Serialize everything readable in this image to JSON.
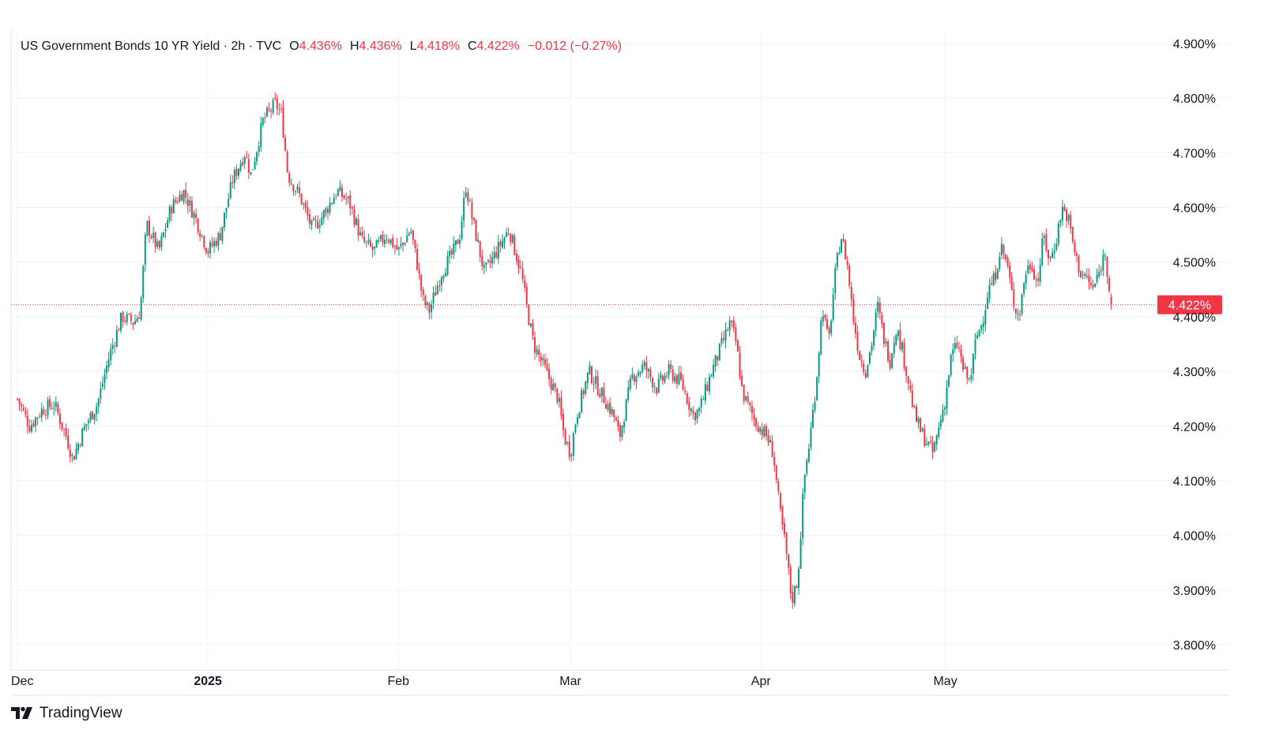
{
  "header": {
    "symbol": "US Government Bonds 10 YR Yield · 2h · TVC",
    "open_label": "O",
    "open": "4.436%",
    "high_label": "H",
    "high": "4.436%",
    "low_label": "L",
    "low": "4.418%",
    "close_label": "C",
    "close": "4.422%",
    "change": "−0.012 (−0.27%)"
  },
  "footer": {
    "brand": "TradingView",
    "logo_icon": "tradingview-logo-icon"
  },
  "colors": {
    "up": "#089981",
    "down": "#f23645",
    "grid": "#f0f3fa",
    "text": "#131722",
    "price_line": "#f23645"
  },
  "chart_data": {
    "type": "candlestick",
    "title": "US Government Bonds 10 YR Yield",
    "interval": "2h",
    "source": "TVC",
    "y_axis": {
      "position": "right",
      "unit": "%",
      "range": [
        3.76,
        4.92
      ],
      "ticks": [
        "4.900%",
        "4.800%",
        "4.700%",
        "4.600%",
        "4.500%",
        "4.400%",
        "4.300%",
        "4.200%",
        "4.100%",
        "4.000%",
        "3.900%",
        "3.800%"
      ]
    },
    "x_axis": {
      "ticks": [
        {
          "label": "Dec",
          "bold": false,
          "day": 0
        },
        {
          "label": "2025",
          "bold": true,
          "day": 31
        },
        {
          "label": "Feb",
          "bold": false,
          "day": 62
        },
        {
          "label": "Mar",
          "bold": false,
          "day": 90
        },
        {
          "label": "Apr",
          "bold": false,
          "day": 121
        },
        {
          "label": "May",
          "bold": false,
          "day": 151
        }
      ],
      "last_day": 178
    },
    "current_price": {
      "value": 4.422,
      "label": "4.422%"
    },
    "grid": true,
    "series": [
      {
        "name": "US Government Bonds 10 YR Yield",
        "kind": "close-path",
        "points": [
          [
            0,
            4.25
          ],
          [
            2,
            4.2
          ],
          [
            4,
            4.23
          ],
          [
            6,
            4.24
          ],
          [
            8,
            4.18
          ],
          [
            9,
            4.14
          ],
          [
            11,
            4.2
          ],
          [
            13,
            4.24
          ],
          [
            15,
            4.33
          ],
          [
            17,
            4.4
          ],
          [
            19,
            4.39
          ],
          [
            20,
            4.41
          ],
          [
            21,
            4.57
          ],
          [
            23,
            4.52
          ],
          [
            25,
            4.6
          ],
          [
            27,
            4.63
          ],
          [
            29,
            4.58
          ],
          [
            31,
            4.52
          ],
          [
            33,
            4.55
          ],
          [
            35,
            4.65
          ],
          [
            37,
            4.7
          ],
          [
            38,
            4.66
          ],
          [
            40,
            4.76
          ],
          [
            42,
            4.79
          ],
          [
            43,
            4.77
          ],
          [
            44,
            4.66
          ],
          [
            46,
            4.62
          ],
          [
            48,
            4.56
          ],
          [
            50,
            4.59
          ],
          [
            52,
            4.63
          ],
          [
            54,
            4.61
          ],
          [
            56,
            4.54
          ],
          [
            58,
            4.52
          ],
          [
            60,
            4.55
          ],
          [
            62,
            4.52
          ],
          [
            64,
            4.56
          ],
          [
            65,
            4.5
          ],
          [
            66,
            4.43
          ],
          [
            67,
            4.41
          ],
          [
            69,
            4.48
          ],
          [
            71,
            4.52
          ],
          [
            72,
            4.55
          ],
          [
            73,
            4.64
          ],
          [
            74,
            4.58
          ],
          [
            76,
            4.48
          ],
          [
            78,
            4.52
          ],
          [
            80,
            4.56
          ],
          [
            82,
            4.48
          ],
          [
            83,
            4.41
          ],
          [
            84,
            4.35
          ],
          [
            86,
            4.3
          ],
          [
            88,
            4.25
          ],
          [
            89,
            4.18
          ],
          [
            90,
            4.15
          ],
          [
            91,
            4.22
          ],
          [
            93,
            4.3
          ],
          [
            95,
            4.26
          ],
          [
            97,
            4.22
          ],
          [
            98,
            4.18
          ],
          [
            100,
            4.29
          ],
          [
            102,
            4.31
          ],
          [
            104,
            4.27
          ],
          [
            106,
            4.3
          ],
          [
            108,
            4.28
          ],
          [
            110,
            4.22
          ],
          [
            111,
            4.23
          ],
          [
            113,
            4.3
          ],
          [
            115,
            4.36
          ],
          [
            116,
            4.39
          ],
          [
            117,
            4.35
          ],
          [
            118,
            4.26
          ],
          [
            120,
            4.21
          ],
          [
            122,
            4.18
          ],
          [
            123,
            4.15
          ],
          [
            124,
            4.05
          ],
          [
            125,
            3.98
          ],
          [
            126,
            3.88
          ],
          [
            127,
            3.92
          ],
          [
            128,
            4.1
          ],
          [
            129,
            4.18
          ],
          [
            130,
            4.28
          ],
          [
            131,
            4.42
          ],
          [
            132,
            4.35
          ],
          [
            133,
            4.47
          ],
          [
            134,
            4.55
          ],
          [
            135,
            4.5
          ],
          [
            136,
            4.4
          ],
          [
            137,
            4.33
          ],
          [
            138,
            4.3
          ],
          [
            139,
            4.35
          ],
          [
            140,
            4.42
          ],
          [
            141,
            4.36
          ],
          [
            142,
            4.32
          ],
          [
            143,
            4.38
          ],
          [
            144,
            4.34
          ],
          [
            145,
            4.28
          ],
          [
            146,
            4.22
          ],
          [
            147,
            4.19
          ],
          [
            148,
            4.17
          ],
          [
            149,
            4.15
          ],
          [
            150,
            4.2
          ],
          [
            151,
            4.25
          ],
          [
            152,
            4.33
          ],
          [
            153,
            4.35
          ],
          [
            154,
            4.3
          ],
          [
            155,
            4.28
          ],
          [
            156,
            4.36
          ],
          [
            157,
            4.39
          ],
          [
            158,
            4.45
          ],
          [
            159,
            4.47
          ],
          [
            160,
            4.53
          ],
          [
            161,
            4.5
          ],
          [
            162,
            4.43
          ],
          [
            163,
            4.4
          ],
          [
            164,
            4.48
          ],
          [
            165,
            4.5
          ],
          [
            166,
            4.46
          ],
          [
            167,
            4.55
          ],
          [
            168,
            4.5
          ],
          [
            169,
            4.54
          ],
          [
            170,
            4.6
          ],
          [
            171,
            4.58
          ],
          [
            172,
            4.52
          ],
          [
            173,
            4.48
          ],
          [
            174,
            4.47
          ],
          [
            175,
            4.45
          ],
          [
            176,
            4.48
          ],
          [
            177,
            4.52
          ],
          [
            178,
            4.422
          ]
        ]
      }
    ]
  }
}
